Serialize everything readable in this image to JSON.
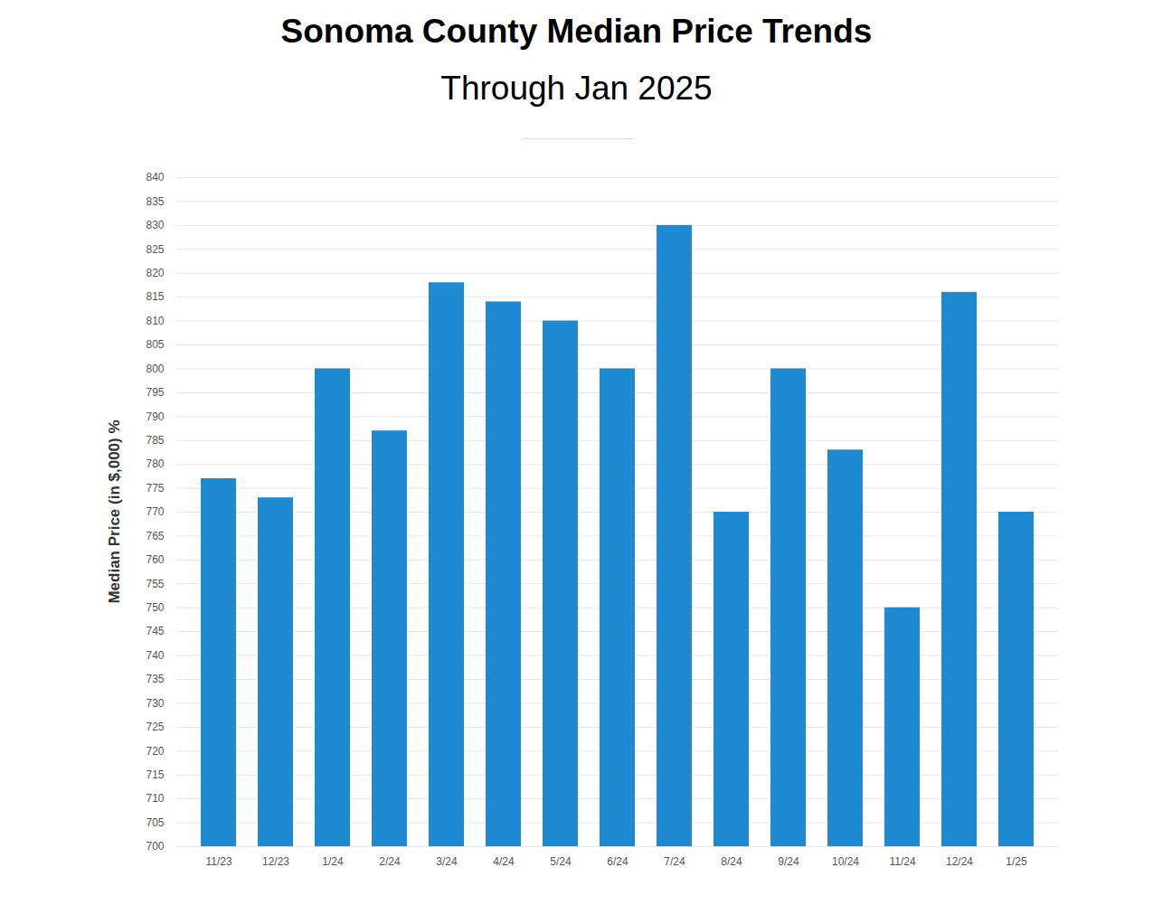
{
  "chart_data": {
    "type": "bar",
    "title": "Sonoma County Median Price Trends",
    "subtitle": "Through Jan 2025",
    "y_label": "Median Price (in $,000) %",
    "categories": [
      "11/23",
      "12/23",
      "1/24",
      "2/24",
      "3/24",
      "4/24",
      "5/24",
      "6/24",
      "7/24",
      "8/24",
      "9/24",
      "10/24",
      "11/24",
      "12/24",
      "1/25"
    ],
    "values": [
      777,
      773,
      800,
      787,
      818,
      814,
      810,
      800,
      830,
      770,
      800,
      783,
      750,
      816,
      770
    ],
    "color": "#1e8ad2",
    "ylim": [
      700,
      840
    ],
    "yticks": [
      700,
      705,
      710,
      715,
      720,
      725,
      730,
      735,
      740,
      745,
      750,
      755,
      760,
      765,
      770,
      775,
      780,
      785,
      790,
      795,
      800,
      805,
      810,
      815,
      820,
      825,
      830,
      835,
      840
    ],
    "grid": true
  }
}
